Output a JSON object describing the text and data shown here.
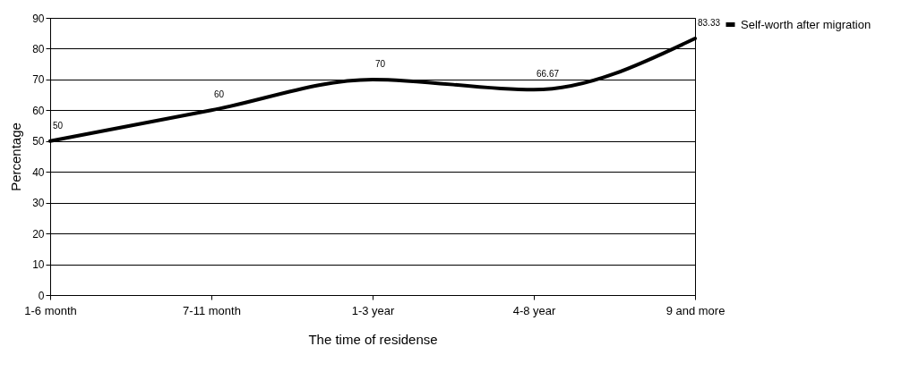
{
  "chart_data": {
    "type": "line",
    "xlabel": "The time of residense",
    "ylabel": "Percentage",
    "categories": [
      "1-6 month",
      "7-11 month",
      "1-3 year",
      "4-8 year",
      "9 and more"
    ],
    "series": [
      {
        "name": "Self-worth after migration",
        "color": "#000000",
        "values": [
          50,
          60,
          70,
          66.67,
          83.33
        ]
      }
    ],
    "ylim": [
      0,
      90
    ],
    "yticks": [
      0,
      10,
      20,
      30,
      40,
      50,
      60,
      70,
      80,
      90
    ],
    "grid": "y",
    "legend": "right",
    "data_labels": true,
    "marker": "none",
    "line_style": "solid"
  }
}
